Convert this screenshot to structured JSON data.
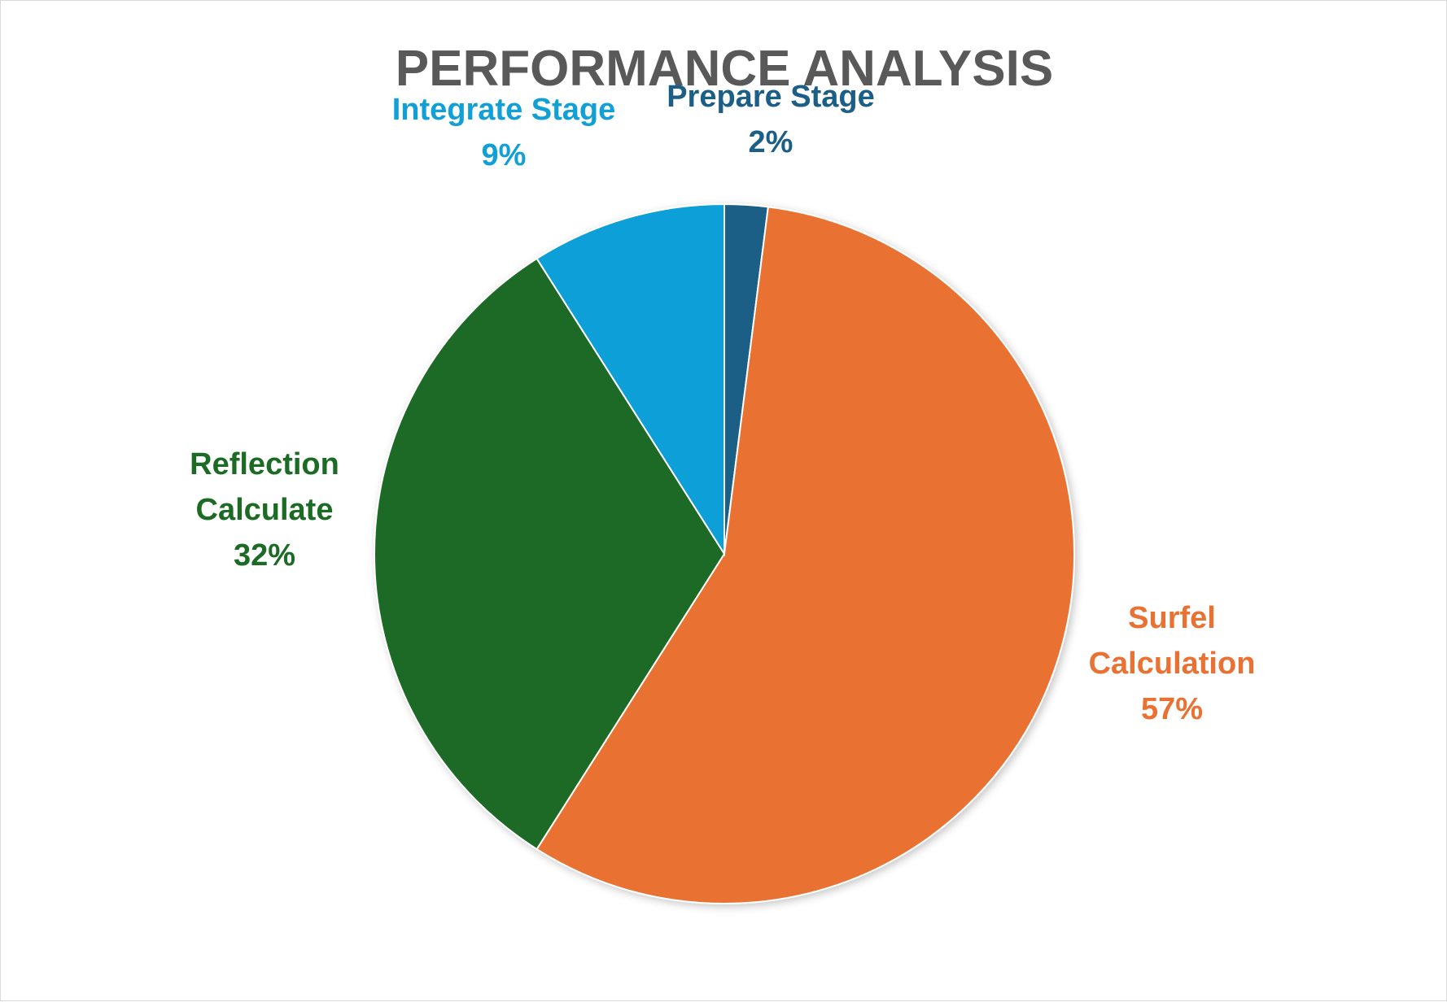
{
  "chart_data": {
    "type": "pie",
    "title": "PERFORMANCE ANALYSIS",
    "start_angle_deg": 0,
    "direction": "clockwise",
    "slices": [
      {
        "label": "Prepare Stage",
        "label_lines": [
          "Prepare Stage"
        ],
        "value": 2,
        "percent_label": "2%",
        "color": "#1b5e86"
      },
      {
        "label": "Surfel Calculation",
        "label_lines": [
          "Surfel",
          "Calculation"
        ],
        "value": 57,
        "percent_label": "57%",
        "color": "#e97132"
      },
      {
        "label": "Reflection Calculate",
        "label_lines": [
          "Reflection",
          "Calculate"
        ],
        "value": 32,
        "percent_label": "32%",
        "color": "#1b6b25"
      },
      {
        "label": "Integrate Stage",
        "label_lines": [
          "Integrate Stage"
        ],
        "value": 9,
        "percent_label": "9%",
        "color": "#119fd8"
      }
    ],
    "legend": "none",
    "data_labels": "outside"
  }
}
